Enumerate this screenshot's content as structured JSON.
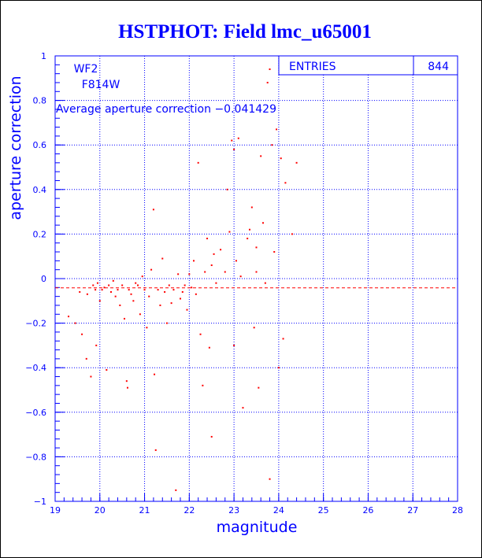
{
  "chart_data": {
    "type": "scatter",
    "title": "HSTPHOT: Field lmc_u65001",
    "xlabel": "magnitude",
    "ylabel": "aperture correction",
    "xlim": [
      19,
      28
    ],
    "ylim": [
      -1,
      1
    ],
    "x_ticks": [
      "19",
      "20",
      "21",
      "22",
      "23",
      "24",
      "25",
      "26",
      "27",
      "28"
    ],
    "y_ticks": [
      "1",
      "0.8",
      "0.6",
      "0.4",
      "0.2",
      "0",
      "−0.2",
      "−0.4",
      "−0.6",
      "−0.8",
      "−1"
    ],
    "grid": true,
    "camera": "WF2",
    "filter": "F814W",
    "stats": {
      "label": "ENTRIES",
      "value": "844"
    },
    "average_label": "Average aperture correction −0.041429",
    "average_value": -0.041429,
    "colors": {
      "axis": "#0000ff",
      "points": "#ff0000",
      "average_line": "#ff0000"
    },
    "series": [
      {
        "points": [
          [
            19.3,
            -0.17
          ],
          [
            19.45,
            -0.2
          ],
          [
            19.55,
            -0.06
          ],
          [
            19.6,
            -0.25
          ],
          [
            19.7,
            -0.36
          ],
          [
            19.72,
            -0.07
          ],
          [
            19.8,
            -0.44
          ],
          [
            19.85,
            -0.03
          ],
          [
            19.9,
            -0.05
          ],
          [
            19.92,
            -0.3
          ],
          [
            19.95,
            -0.02
          ],
          [
            20.0,
            -0.1
          ],
          [
            20.05,
            -0.05
          ],
          [
            20.1,
            -0.04
          ],
          [
            20.15,
            -0.41
          ],
          [
            20.2,
            -0.03
          ],
          [
            20.25,
            -0.06
          ],
          [
            20.3,
            -0.01
          ],
          [
            20.35,
            -0.08
          ],
          [
            20.4,
            -0.05
          ],
          [
            20.45,
            -0.12
          ],
          [
            20.5,
            -0.03
          ],
          [
            20.55,
            -0.18
          ],
          [
            20.6,
            -0.46
          ],
          [
            20.62,
            -0.49
          ],
          [
            20.65,
            -0.05
          ],
          [
            20.7,
            -0.07
          ],
          [
            20.75,
            -0.1
          ],
          [
            20.8,
            -0.02
          ],
          [
            20.85,
            -0.03
          ],
          [
            20.9,
            -0.16
          ],
          [
            20.95,
            0.01
          ],
          [
            21.0,
            -0.05
          ],
          [
            21.05,
            -0.22
          ],
          [
            21.1,
            -0.08
          ],
          [
            21.15,
            0.04
          ],
          [
            21.2,
            0.31
          ],
          [
            21.22,
            -0.43
          ],
          [
            21.25,
            -0.77
          ],
          [
            21.3,
            -0.05
          ],
          [
            21.35,
            -0.12
          ],
          [
            21.4,
            0.09
          ],
          [
            21.45,
            -0.06
          ],
          [
            21.5,
            -0.2
          ],
          [
            21.55,
            -0.03
          ],
          [
            21.6,
            -0.11
          ],
          [
            21.65,
            -0.05
          ],
          [
            21.7,
            -0.95
          ],
          [
            21.75,
            0.02
          ],
          [
            21.8,
            -0.09
          ],
          [
            21.85,
            -0.06
          ],
          [
            21.9,
            -0.03
          ],
          [
            21.95,
            -0.14
          ],
          [
            22.0,
            0.02
          ],
          [
            22.05,
            -0.04
          ],
          [
            22.1,
            0.08
          ],
          [
            22.15,
            -0.07
          ],
          [
            22.2,
            0.52
          ],
          [
            22.25,
            -0.25
          ],
          [
            22.3,
            -0.48
          ],
          [
            22.35,
            0.03
          ],
          [
            22.4,
            0.18
          ],
          [
            22.45,
            -0.31
          ],
          [
            22.5,
            0.06
          ],
          [
            22.5,
            -0.71
          ],
          [
            22.55,
            0.11
          ],
          [
            22.6,
            -0.02
          ],
          [
            22.7,
            0.13
          ],
          [
            22.8,
            0.03
          ],
          [
            22.85,
            0.4
          ],
          [
            22.9,
            0.21
          ],
          [
            22.95,
            0.62
          ],
          [
            23.0,
            0.58
          ],
          [
            23.0,
            -0.3
          ],
          [
            23.05,
            0.08
          ],
          [
            23.1,
            0.63
          ],
          [
            23.15,
            0.01
          ],
          [
            23.2,
            -0.58
          ],
          [
            23.3,
            0.18
          ],
          [
            23.35,
            0.22
          ],
          [
            23.4,
            0.32
          ],
          [
            23.45,
            -0.22
          ],
          [
            23.5,
            0.14
          ],
          [
            23.5,
            0.03
          ],
          [
            23.55,
            -0.49
          ],
          [
            23.6,
            0.55
          ],
          [
            23.65,
            0.25
          ],
          [
            23.7,
            -0.02
          ],
          [
            23.75,
            0.88
          ],
          [
            23.8,
            0.94
          ],
          [
            23.8,
            -0.9
          ],
          [
            23.85,
            0.6
          ],
          [
            23.9,
            0.12
          ],
          [
            23.95,
            0.67
          ],
          [
            24.0,
            -0.4
          ],
          [
            24.05,
            0.54
          ],
          [
            24.1,
            -0.27
          ],
          [
            24.15,
            0.43
          ],
          [
            24.3,
            0.2
          ],
          [
            24.4,
            0.52
          ]
        ]
      }
    ]
  }
}
